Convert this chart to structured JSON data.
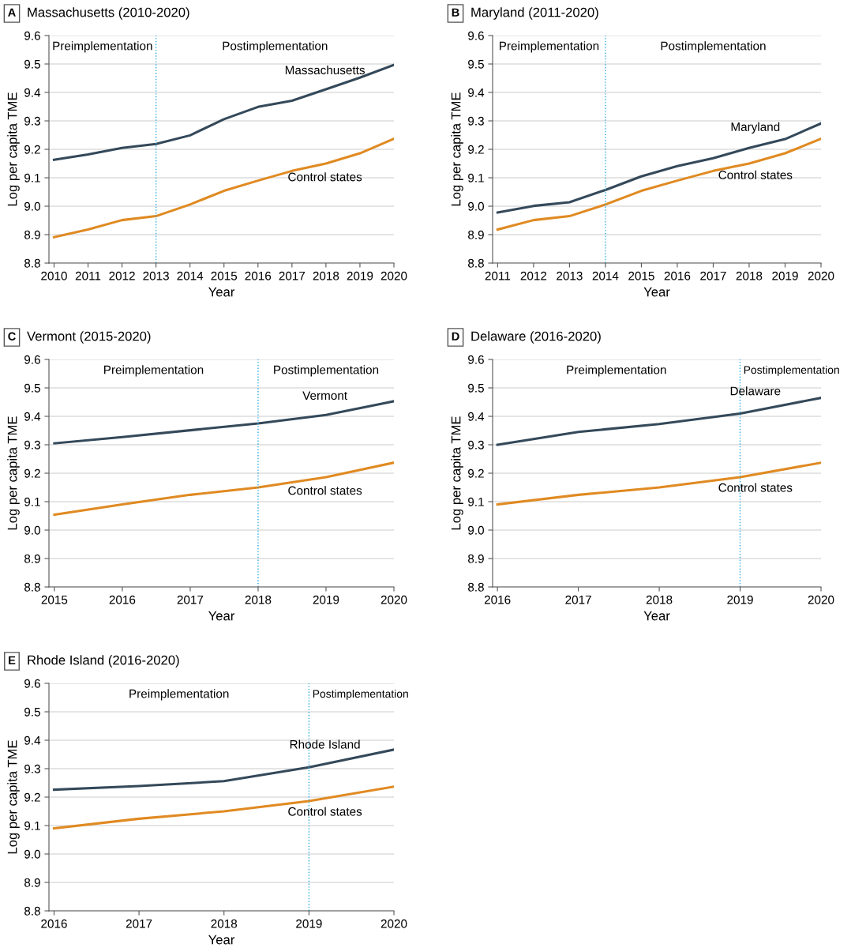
{
  "chart_data": [
    {
      "type": "line",
      "title": "Massachusetts (2010-2020)",
      "xlabel": "Year",
      "ylabel": "Log per capita TME",
      "annotations": [
        "A",
        "Preimplementation",
        "Postimplementation"
      ],
      "x": [
        2010,
        2011,
        2012,
        2013,
        2014,
        2015,
        2016,
        2017,
        2018,
        2019,
        2020
      ],
      "series": [
        {
          "name": "Massachusetts",
          "color": "#34495a",
          "values": [
            9.163,
            9.182,
            9.205,
            9.219,
            9.249,
            9.306,
            9.349,
            9.371,
            9.411,
            9.452,
            9.497
          ]
        },
        {
          "name": "Control states",
          "color": "#e08a22",
          "values": [
            8.891,
            8.918,
            8.951,
            8.965,
            9.006,
            9.054,
            9.09,
            9.124,
            9.15,
            9.186,
            9.237
          ]
        }
      ],
      "xlim": [
        2009.85,
        2020
      ],
      "xticks": [
        2010,
        2011,
        2012,
        2013,
        2014,
        2015,
        2016,
        2017,
        2018,
        2019,
        2020
      ],
      "ylim": [
        8.8,
        9.6
      ],
      "yticks": [
        {
          "value": 8.8,
          "label": "8.8"
        },
        {
          "value": 8.9,
          "label": "8.9"
        },
        {
          "value": 9.0,
          "label": "9.0"
        },
        {
          "value": 9.1,
          "label": "9.1"
        },
        {
          "value": 9.2,
          "label": "9.2"
        },
        {
          "value": 9.3,
          "label": "9.3"
        },
        {
          "value": 9.4,
          "label": "9.4"
        },
        {
          "value": 9.5,
          "label": "9.5"
        },
        {
          "value": 9.6,
          "label": "9.6"
        }
      ],
      "ref_lines": [
        {
          "axis": "x",
          "value": 2013,
          "color": "#29a8e0",
          "line_style": "dotted"
        }
      ],
      "grid": "y",
      "legend": false
    },
    {
      "type": "line",
      "title": "Maryland (2011-2020)",
      "xlabel": "Year",
      "ylabel": "Log per capita TME",
      "annotations": [
        "B",
        "Preimplementation",
        "Postimplementation"
      ],
      "x": [
        2011,
        2012,
        2013,
        2014,
        2015,
        2016,
        2017,
        2018,
        2019,
        2020
      ],
      "series": [
        {
          "name": "Maryland",
          "color": "#34495a",
          "values": [
            8.978,
            9.001,
            9.014,
            9.057,
            9.105,
            9.141,
            9.169,
            9.205,
            9.236,
            9.291
          ]
        },
        {
          "name": "Control states",
          "color": "#e08a22",
          "values": [
            8.918,
            8.951,
            8.965,
            9.006,
            9.054,
            9.09,
            9.124,
            9.15,
            9.186,
            9.237
          ]
        }
      ],
      "xlim": [
        2010.86,
        2020
      ],
      "xticks": [
        2011,
        2012,
        2013,
        2014,
        2015,
        2016,
        2017,
        2018,
        2019,
        2020
      ],
      "ylim": [
        8.8,
        9.6
      ],
      "yticks": [
        {
          "value": 8.8,
          "label": "8.8"
        },
        {
          "value": 8.9,
          "label": "8.9"
        },
        {
          "value": 9.0,
          "label": "9.0"
        },
        {
          "value": 9.1,
          "label": "9.1"
        },
        {
          "value": 9.2,
          "label": "9.2"
        },
        {
          "value": 9.3,
          "label": "9.3"
        },
        {
          "value": 9.4,
          "label": "9.4"
        },
        {
          "value": 9.5,
          "label": "9.5"
        },
        {
          "value": 9.6,
          "label": "9.6"
        }
      ],
      "ref_lines": [
        {
          "axis": "x",
          "value": 2014,
          "color": "#29a8e0",
          "line_style": "dotted"
        }
      ],
      "grid": "y",
      "legend": false
    },
    {
      "type": "line",
      "title": "Vermont (2015-2020)",
      "xlabel": "Year",
      "ylabel": "Log per capita TME",
      "annotations": [
        "C",
        "Preimplementation",
        "Postimplementation"
      ],
      "x": [
        2015,
        2016,
        2017,
        2018,
        2019,
        2020
      ],
      "series": [
        {
          "name": "Vermont",
          "color": "#34495a",
          "values": [
            9.305,
            9.327,
            9.351,
            9.375,
            9.405,
            9.453
          ]
        },
        {
          "name": "Control states",
          "color": "#e08a22",
          "values": [
            9.054,
            9.09,
            9.124,
            9.15,
            9.186,
            9.237
          ]
        }
      ],
      "xlim": [
        2014.92,
        2020
      ],
      "xticks": [
        2015,
        2016,
        2017,
        2018,
        2019,
        2020
      ],
      "ylim": [
        8.8,
        9.6
      ],
      "yticks": [
        {
          "value": 8.8,
          "label": "8.8"
        },
        {
          "value": 8.9,
          "label": "8.9"
        },
        {
          "value": 9.0,
          "label": "9.0"
        },
        {
          "value": 9.1,
          "label": "9.1"
        },
        {
          "value": 9.2,
          "label": "9.2"
        },
        {
          "value": 9.3,
          "label": "9.3"
        },
        {
          "value": 9.4,
          "label": "9.4"
        },
        {
          "value": 9.5,
          "label": "9.5"
        },
        {
          "value": 9.6,
          "label": "9.6"
        }
      ],
      "ref_lines": [
        {
          "axis": "x",
          "value": 2018,
          "color": "#29a8e0",
          "line_style": "dotted"
        }
      ],
      "grid": "y",
      "legend": false
    },
    {
      "type": "line",
      "title": "Delaware (2016-2020)",
      "xlabel": "Year",
      "ylabel": "Log per capita TME",
      "annotations": [
        "D",
        "Preimplementation",
        "Postimplementation"
      ],
      "x": [
        2016,
        2017,
        2018,
        2019,
        2020
      ],
      "series": [
        {
          "name": "Delaware",
          "color": "#34495a",
          "values": [
            9.3,
            9.345,
            9.373,
            9.41,
            9.465
          ]
        },
        {
          "name": "Control states",
          "color": "#e08a22",
          "values": [
            9.09,
            9.124,
            9.15,
            9.186,
            9.237
          ]
        }
      ],
      "xlim": [
        2015.94,
        2020
      ],
      "xticks": [
        2016,
        2017,
        2018,
        2019,
        2020
      ],
      "ylim": [
        8.8,
        9.6
      ],
      "yticks": [
        {
          "value": 8.8,
          "label": "8.8"
        },
        {
          "value": 8.9,
          "label": "8.9"
        },
        {
          "value": 9.0,
          "label": "9.0"
        },
        {
          "value": 9.1,
          "label": "9.1"
        },
        {
          "value": 9.2,
          "label": "9.2"
        },
        {
          "value": 9.3,
          "label": "9.3"
        },
        {
          "value": 9.4,
          "label": "9.4"
        },
        {
          "value": 9.5,
          "label": "9.5"
        },
        {
          "value": 9.6,
          "label": "9.6"
        }
      ],
      "ref_lines": [
        {
          "axis": "x",
          "value": 2019,
          "color": "#29a8e0",
          "line_style": "dotted"
        }
      ],
      "grid": "y",
      "legend": false
    },
    {
      "type": "line",
      "title": "Rhode Island (2016-2020)",
      "xlabel": "Year",
      "ylabel": "Log per capita TME",
      "annotations": [
        "E",
        "Preimplementation",
        "Postimplementation"
      ],
      "x": [
        2016,
        2017,
        2018,
        2019,
        2020
      ],
      "series": [
        {
          "name": "Rhode Island",
          "color": "#34495a",
          "values": [
            9.226,
            9.239,
            9.256,
            9.305,
            9.367
          ]
        },
        {
          "name": "Control states",
          "color": "#e08a22",
          "values": [
            9.09,
            9.124,
            9.15,
            9.186,
            9.237
          ]
        }
      ],
      "xlim": [
        2015.94,
        2020
      ],
      "xticks": [
        2016,
        2017,
        2018,
        2019,
        2020
      ],
      "ylim": [
        8.8,
        9.6
      ],
      "yticks": [
        {
          "value": 8.8,
          "label": "8.8"
        },
        {
          "value": 8.9,
          "label": "8.9"
        },
        {
          "value": 9.0,
          "label": "9.0"
        },
        {
          "value": 9.1,
          "label": "9.1"
        },
        {
          "value": 9.2,
          "label": "9.2"
        },
        {
          "value": 9.3,
          "label": "9.3"
        },
        {
          "value": 9.4,
          "label": "9.4"
        },
        {
          "value": 9.5,
          "label": "9.5"
        },
        {
          "value": 9.6,
          "label": "9.6"
        }
      ],
      "ref_lines": [
        {
          "axis": "x",
          "value": 2019,
          "color": "#29a8e0",
          "line_style": "dotted"
        }
      ],
      "grid": "y",
      "legend": false
    }
  ]
}
